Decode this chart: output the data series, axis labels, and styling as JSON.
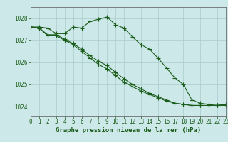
{
  "x": [
    0,
    1,
    2,
    3,
    4,
    5,
    6,
    7,
    8,
    9,
    10,
    11,
    12,
    13,
    14,
    15,
    16,
    17,
    18,
    19,
    20,
    21,
    22,
    23
  ],
  "line1": [
    1027.6,
    1027.6,
    1027.55,
    1027.3,
    1027.3,
    1027.6,
    1027.55,
    1027.85,
    1027.95,
    1028.05,
    1027.7,
    1027.55,
    1027.15,
    1026.8,
    1026.6,
    1026.2,
    1025.75,
    1025.3,
    1025.0,
    1024.3,
    1024.15,
    1024.1,
    1024.05,
    1024.1
  ],
  "line2": [
    1027.6,
    1027.55,
    1027.2,
    1027.2,
    1027.0,
    1026.8,
    1026.5,
    1026.2,
    1025.9,
    1025.7,
    1025.4,
    1025.1,
    1024.9,
    1024.7,
    1024.55,
    1024.4,
    1024.25,
    1024.15,
    1024.1,
    1024.05,
    1024.05,
    1024.05,
    1024.05,
    1024.05
  ],
  "line3": [
    1027.6,
    1027.55,
    1027.25,
    1027.25,
    1027.05,
    1026.85,
    1026.6,
    1026.3,
    1026.05,
    1025.85,
    1025.55,
    1025.25,
    1025.0,
    1024.8,
    1024.6,
    1024.45,
    1024.3,
    1024.15,
    1024.1,
    1024.05,
    1024.05,
    1024.05,
    1024.05,
    1024.1
  ],
  "background_color": "#cce8e8",
  "grid_color": "#aacccc",
  "line_color": "#1a5c1a",
  "ylabel_ticks": [
    1024,
    1025,
    1026,
    1027,
    1028
  ],
  "xlabel_label": "Graphe pression niveau de la mer (hPa)",
  "ylim": [
    1023.55,
    1028.5
  ],
  "xlim": [
    0,
    23
  ],
  "marker": "+",
  "linewidth": 0.8,
  "markersize": 4,
  "tick_fontsize": 5.5,
  "xlabel_fontsize": 6.5
}
